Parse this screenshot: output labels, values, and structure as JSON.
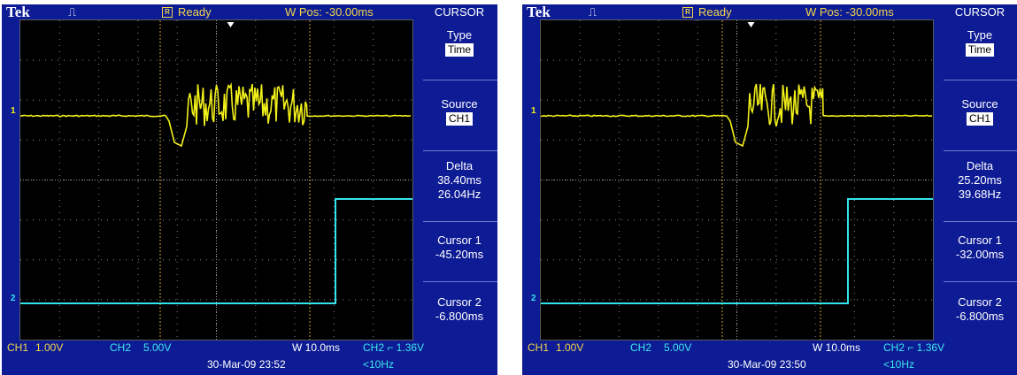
{
  "colors": {
    "ch1": "#f2f019",
    "ch2": "#33e2ea",
    "frame": "#0d1b94",
    "cursor": "#c9a43a"
  },
  "scopes": [
    {
      "brand": "Tek",
      "pulse_glyph": "⎍",
      "r_label": "R",
      "status": "Ready",
      "wpos": "W Pos: -30.00ms",
      "menu_title": "CURSOR",
      "type_label": "Type",
      "type_value": "Time",
      "source_label": "Source",
      "source_value": "CH1",
      "delta_label": "Delta",
      "delta_time": "38.40ms",
      "delta_freq": "26.04Hz",
      "cursor1_label": "Cursor 1",
      "cursor1_value": "-45.20ms",
      "cursor2_label": "Cursor 2",
      "cursor2_value": "-6.800ms",
      "ch1_label": "CH1",
      "ch1_scale": "1.00V",
      "ch2_label": "CH2",
      "ch2_scale": "5.00V",
      "timebase": "W 10.0ms",
      "trigger": "CH2 ⌐ 1.36V",
      "date": "30-Mar-09 23:52",
      "freq": "<10Hz",
      "ch1_marker": "1",
      "ch2_marker": "2"
    },
    {
      "brand": "Tek",
      "pulse_glyph": "⎍",
      "r_label": "R",
      "status": "Ready",
      "wpos": "W Pos: -30.00ms",
      "menu_title": "CURSOR",
      "type_label": "Type",
      "type_value": "Time",
      "source_label": "Source",
      "source_value": "CH1",
      "delta_label": "Delta",
      "delta_time": "25.20ms",
      "delta_freq": "39.68Hz",
      "cursor1_label": "Cursor 1",
      "cursor1_value": "-32.00ms",
      "cursor2_label": "Cursor 2",
      "cursor2_value": "-6.800ms",
      "ch1_label": "CH1",
      "ch1_scale": "1.00V",
      "ch2_label": "CH2",
      "ch2_scale": "5.00V",
      "timebase": "W 10.0ms",
      "trigger": "CH2 ⌐ 1.36V",
      "date": "30-Mar-09 23:50",
      "freq": "<10Hz",
      "ch1_marker": "1",
      "ch2_marker": "2"
    }
  ]
}
